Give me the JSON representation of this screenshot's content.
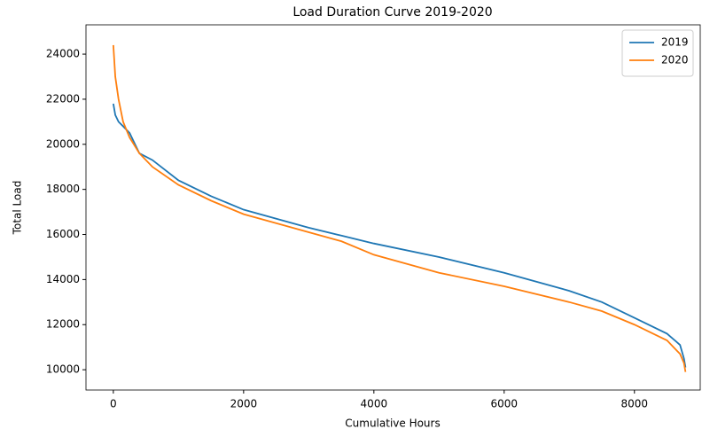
{
  "chart_data": {
    "type": "line",
    "title": "Load Duration Curve 2019-2020",
    "x_label": "Cumulative Hours",
    "y_label": "Total Load",
    "x": [
      0,
      30,
      80,
      150,
      250,
      400,
      600,
      1000,
      1500,
      2000,
      3000,
      3500,
      4000,
      5000,
      6000,
      7000,
      7500,
      8000,
      8500,
      8700,
      8760,
      8784
    ],
    "series": [
      {
        "name": "2019",
        "color": "#1f77b4",
        "values": [
          21800,
          21300,
          21000,
          20800,
          20500,
          19600,
          19300,
          18400,
          17700,
          17100,
          16300,
          15950,
          15600,
          15000,
          14300,
          13500,
          13000,
          12300,
          11600,
          11100,
          10500,
          10100
        ]
      },
      {
        "name": "2020",
        "color": "#ff7f0e",
        "values": [
          24400,
          23000,
          22000,
          21000,
          20300,
          19600,
          19000,
          18200,
          17500,
          16900,
          16100,
          15700,
          15100,
          14300,
          13700,
          13000,
          12600,
          12000,
          11300,
          10700,
          10300,
          9900
        ]
      }
    ],
    "xlim": [
      -420,
      9010
    ],
    "ylim": [
      9100,
      25300
    ],
    "xticks": [
      0,
      2000,
      4000,
      6000,
      8000
    ],
    "yticks": [
      10000,
      12000,
      14000,
      16000,
      18000,
      20000,
      22000,
      24000
    ],
    "legend": "upper right"
  }
}
